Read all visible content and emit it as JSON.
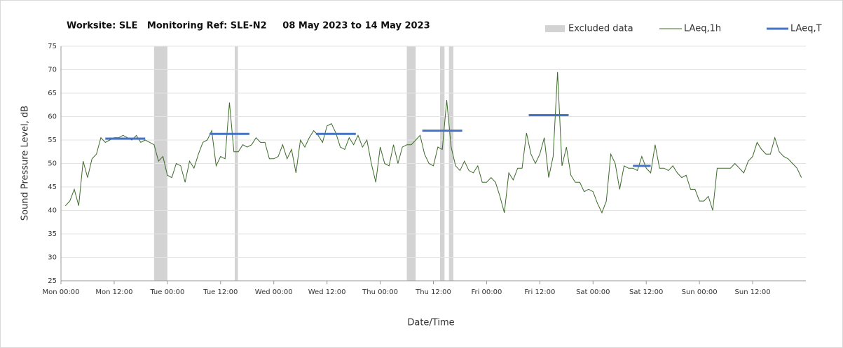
{
  "chart_data": {
    "type": "line",
    "title": "Worksite: SLE   Monitoring Ref: SLE-N2     08 May 2023 to 14 May 2023",
    "xlabel": "Date/Time",
    "ylabel": "Sound Pressure Level, dB",
    "xlim": [
      0,
      168
    ],
    "xticks": [
      {
        "value": 0,
        "label": "Mon 00:00"
      },
      {
        "value": 12,
        "label": "Mon 12:00"
      },
      {
        "value": 24,
        "label": "Tue 00:00"
      },
      {
        "value": 36,
        "label": "Tue 12:00"
      },
      {
        "value": 48,
        "label": "Wed 00:00"
      },
      {
        "value": 60,
        "label": "Wed 12:00"
      },
      {
        "value": 72,
        "label": "Thu 00:00"
      },
      {
        "value": 84,
        "label": "Thu 12:00"
      },
      {
        "value": 96,
        "label": "Fri 00:00"
      },
      {
        "value": 108,
        "label": "Fri 12:00"
      },
      {
        "value": 120,
        "label": "Sat 00:00"
      },
      {
        "value": 132,
        "label": "Sat 12:00"
      },
      {
        "value": 144,
        "label": "Sun 00:00"
      },
      {
        "value": 156,
        "label": "Sun 12:00"
      }
    ],
    "ylim": [
      25,
      75
    ],
    "yticks": [
      25,
      30,
      35,
      40,
      45,
      50,
      55,
      60,
      65,
      70,
      75
    ],
    "grid": true,
    "legend": "top-right",
    "x": [
      1,
      2,
      3,
      4,
      5,
      6,
      7,
      8,
      9,
      10,
      11,
      12,
      13,
      14,
      15,
      16,
      17,
      18,
      19,
      20,
      21,
      22,
      23,
      24,
      25,
      26,
      27,
      28,
      29,
      30,
      31,
      32,
      33,
      34,
      35,
      36,
      37,
      38,
      39,
      40,
      41,
      42,
      43,
      44,
      45,
      46,
      47,
      48,
      49,
      50,
      51,
      52,
      53,
      54,
      55,
      56,
      57,
      58,
      59,
      60,
      61,
      62,
      63,
      64,
      65,
      66,
      67,
      68,
      69,
      70,
      71,
      72,
      73,
      74,
      75,
      76,
      77,
      78,
      79,
      80,
      81,
      82,
      83,
      84,
      85,
      86,
      87,
      88,
      89,
      90,
      91,
      92,
      93,
      94,
      95,
      96,
      97,
      98,
      99,
      100,
      101,
      102,
      103,
      104,
      105,
      106,
      107,
      108,
      109,
      110,
      111,
      112,
      113,
      114,
      115,
      116,
      117,
      118,
      119,
      120,
      121,
      122,
      123,
      124,
      125,
      126,
      127,
      128,
      129,
      130,
      131,
      132,
      133,
      134,
      135,
      136,
      137,
      138,
      139,
      140,
      141,
      142,
      143,
      144,
      145,
      146,
      147,
      148,
      149,
      150,
      151,
      152,
      153,
      154,
      155,
      156,
      157,
      158,
      159,
      160,
      161,
      162,
      163,
      164,
      165,
      166,
      167
    ],
    "series": [
      {
        "name": "LAeq,1h",
        "color": "#3d6b2a",
        "values": [
          41,
          42,
          44.5,
          41,
          50.5,
          47,
          51,
          52,
          55.5,
          54.5,
          55,
          55.5,
          55.5,
          56,
          55.5,
          55,
          56,
          54.5,
          55,
          54.5,
          54,
          50.5,
          51.5,
          47.5,
          47,
          50,
          49.5,
          46,
          50.5,
          49,
          52,
          54.5,
          55,
          57,
          49.5,
          51.5,
          51,
          63,
          52.5,
          52.5,
          54,
          53.5,
          54,
          55.5,
          54.5,
          54.5,
          51,
          51,
          51.5,
          54,
          51,
          53,
          48,
          55,
          53.5,
          55.5,
          57,
          56,
          54.5,
          58,
          58.5,
          56.5,
          53.5,
          53,
          55.5,
          54,
          56,
          53.5,
          55,
          50,
          46,
          53.5,
          50,
          49.5,
          54,
          50,
          53.5,
          54,
          54,
          55,
          56,
          52,
          50,
          49.5,
          53.5,
          53,
          63.5,
          53.5,
          49.5,
          48.5,
          50.5,
          48.5,
          48,
          49.5,
          46,
          46,
          47,
          46,
          43,
          39.5,
          48,
          46.5,
          49,
          49,
          56.5,
          52,
          50,
          52,
          55.5,
          47,
          51.5,
          69.5,
          49.5,
          53.5,
          47.5,
          46,
          46,
          44,
          44.5,
          44,
          41.5,
          39.5,
          42,
          52,
          50,
          44.5,
          49.5,
          49,
          49,
          48.5,
          51.5,
          49,
          48,
          54,
          49,
          49,
          48.5,
          49.5,
          48,
          47,
          47.5,
          44.5,
          44.5,
          42,
          42,
          43,
          40,
          49,
          49,
          49,
          49,
          50,
          49,
          48,
          50.5,
          51.5,
          54.5,
          53,
          52,
          52,
          55.5,
          52.5,
          51.5,
          51,
          50,
          49,
          47
        ]
      }
    ],
    "periods": {
      "name": "LAeq,T",
      "color": "#4472c4",
      "items": [
        {
          "start": 10,
          "end": 19,
          "value": 55.3
        },
        {
          "start": 33.5,
          "end": 42.5,
          "value": 56.3
        },
        {
          "start": 57.5,
          "end": 66.5,
          "value": 56.3
        },
        {
          "start": 81.5,
          "end": 90.5,
          "value": 57
        },
        {
          "start": 105.5,
          "end": 114.5,
          "value": 60.3
        },
        {
          "start": 129,
          "end": 133,
          "value": 49.5
        }
      ]
    },
    "excluded": {
      "name": "Excluded data",
      "color": "#d3d3d3",
      "ranges": [
        [
          21,
          24
        ],
        [
          39.2,
          39.9
        ],
        [
          78,
          80
        ],
        [
          85.5,
          86.5
        ],
        [
          87.5,
          88.5
        ]
      ]
    }
  }
}
